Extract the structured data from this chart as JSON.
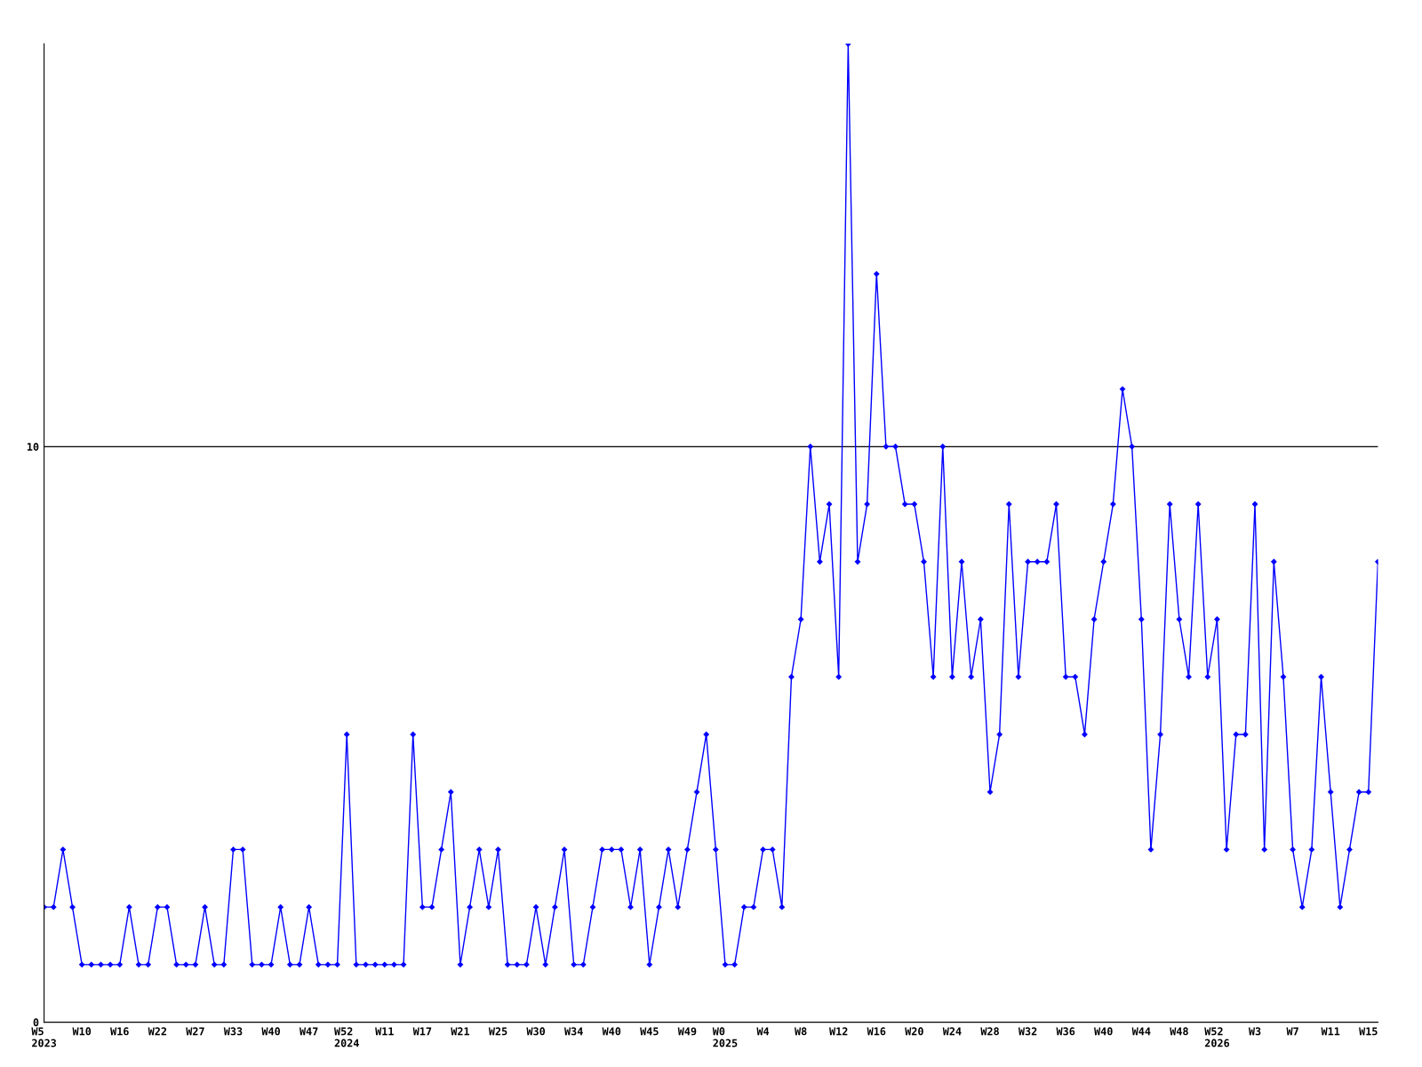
{
  "chart_data": {
    "type": "line",
    "categories": [
      "W5\n2023",
      null,
      null,
      null,
      "W10",
      null,
      null,
      null,
      "W16",
      null,
      null,
      null,
      "W22",
      null,
      null,
      null,
      "W27",
      null,
      null,
      null,
      "W33",
      null,
      null,
      null,
      "W40",
      null,
      null,
      null,
      "W47",
      null,
      null,
      null,
      "W52\n2024",
      null,
      null,
      null,
      "W11",
      null,
      null,
      null,
      "W17",
      null,
      null,
      null,
      "W21",
      null,
      null,
      null,
      "W25",
      null,
      null,
      null,
      "W30",
      null,
      null,
      null,
      "W34",
      null,
      null,
      null,
      "W40",
      null,
      null,
      null,
      "W45",
      null,
      null,
      null,
      "W49",
      null,
      null,
      null,
      "W0\n2025",
      null,
      null,
      null,
      "W4",
      null,
      null,
      null,
      "W8",
      null,
      null,
      null,
      "W12",
      null,
      null,
      null,
      "W16",
      null,
      null,
      null,
      "W20",
      null,
      null,
      null,
      "W24",
      null,
      null,
      null,
      "W28",
      null,
      null,
      null,
      "W32",
      null,
      null,
      null,
      "W36",
      null,
      null,
      null,
      "W40",
      null,
      null,
      null,
      "W44",
      null,
      null,
      null,
      "W48",
      null,
      null,
      null,
      "W52\n2026",
      null,
      null,
      null,
      "W3",
      null,
      null,
      null,
      "W7",
      null,
      null,
      null,
      "W11",
      null,
      null,
      null,
      "W15",
      null
    ],
    "series": [
      {
        "color": "#0000ff",
        "values": [
          2,
          2,
          3,
          2,
          1,
          1,
          1,
          1,
          1,
          2,
          1,
          1,
          2,
          2,
          1,
          1,
          1,
          2,
          1,
          1,
          3,
          3,
          1,
          1,
          1,
          2,
          1,
          1,
          2,
          1,
          1,
          1,
          5,
          1,
          1,
          1,
          1,
          1,
          1,
          5,
          2,
          2,
          3,
          4,
          1,
          2,
          3,
          2,
          3,
          1,
          1,
          1,
          2,
          1,
          2,
          3,
          1,
          1,
          2,
          3,
          3,
          3,
          2,
          3,
          1,
          2,
          3,
          2,
          3,
          4,
          5,
          3,
          1,
          1,
          2,
          2,
          3,
          3,
          2,
          6,
          7,
          10,
          8,
          9,
          6,
          17,
          8,
          9,
          13,
          10,
          10,
          9,
          9,
          8,
          6,
          10,
          6,
          8,
          6,
          7,
          4,
          5,
          9,
          6,
          8,
          8,
          8,
          9,
          6,
          6,
          5,
          7,
          8,
          9,
          11,
          10,
          7,
          3,
          5,
          9,
          7,
          6,
          9,
          6,
          7,
          3,
          5,
          5,
          9,
          3,
          8,
          6,
          3,
          2,
          3,
          6,
          4,
          2,
          3,
          4,
          4,
          8
        ]
      }
    ],
    "ylim": [
      0,
      17
    ],
    "yticks": [
      0,
      10
    ],
    "grid": "y",
    "marker": "diamond",
    "line_style": "solid"
  }
}
